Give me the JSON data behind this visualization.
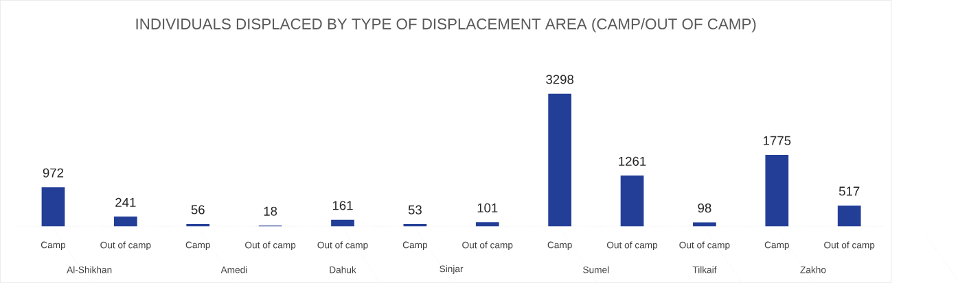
{
  "chart_data": {
    "type": "bar",
    "title": "INDIVIDUALS DISPLACED BY TYPE OF DISPLACEMENT AREA (CAMP/OUT OF CAMP)",
    "categories": [
      "Al-Shikhan",
      "Amedi",
      "Dahuk",
      "Sinjar",
      "Sumel",
      "Tilkaif",
      "Zakho"
    ],
    "series": [
      {
        "name": "Camp",
        "color": "#233e97",
        "values": [
          972,
          56,
          null,
          53,
          3298,
          null,
          1775
        ]
      },
      {
        "name": "Out of camp",
        "color": "#233e97",
        "values": [
          241,
          18,
          161,
          101,
          1261,
          98,
          517
        ]
      }
    ],
    "data_labels": true,
    "legend": false
  }
}
